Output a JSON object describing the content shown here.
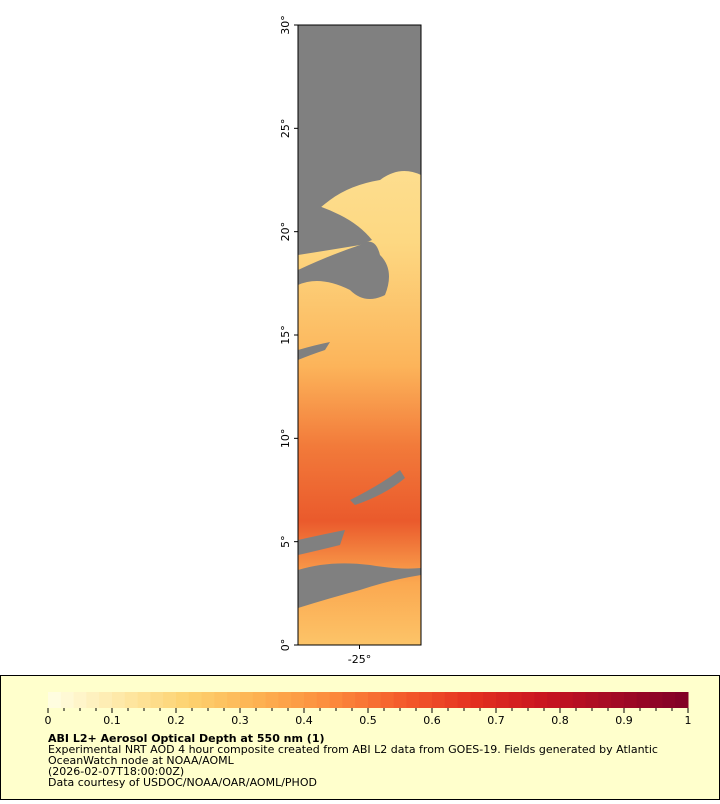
{
  "map": {
    "lat_range": [
      0,
      30
    ],
    "lon_range": [
      -28,
      -22
    ],
    "lat_ticks": [
      {
        "value": 0,
        "label": "0°"
      },
      {
        "value": 5,
        "label": "5°"
      },
      {
        "value": 10,
        "label": "10°"
      },
      {
        "value": 15,
        "label": "15°"
      },
      {
        "value": 20,
        "label": "20°"
      },
      {
        "value": 25,
        "label": "25°"
      },
      {
        "value": 30,
        "label": "30°"
      }
    ],
    "lon_ticks": [
      {
        "value": -25,
        "label": "-25°"
      }
    ]
  },
  "colorbar": {
    "range": [
      0,
      1
    ],
    "ticks": [
      0,
      0.1,
      0.2,
      0.3,
      0.4,
      0.5,
      0.6,
      0.7,
      0.8,
      0.9,
      1
    ],
    "colors": [
      "#ffffe5",
      "#fee9a8",
      "#fdd16e",
      "#fdb050",
      "#fc8a3c",
      "#f45b2b",
      "#e3301f",
      "#c8141f",
      "#a20a25",
      "#800026"
    ]
  },
  "legend": {
    "title": "ABI L2+ Aerosol Optical Depth at 550 nm (1)",
    "lines": [
      "Experimental NRT AOD 4 hour composite created from ABI L2 data from GOES-19. Fields generated by Atlantic",
      "OceanWatch node at NOAA/AOML",
      "(2026-02-07T18:00:00Z)",
      "Data courtesy of USDOC/NOAA/OAR/AOML/PHOD"
    ]
  }
}
